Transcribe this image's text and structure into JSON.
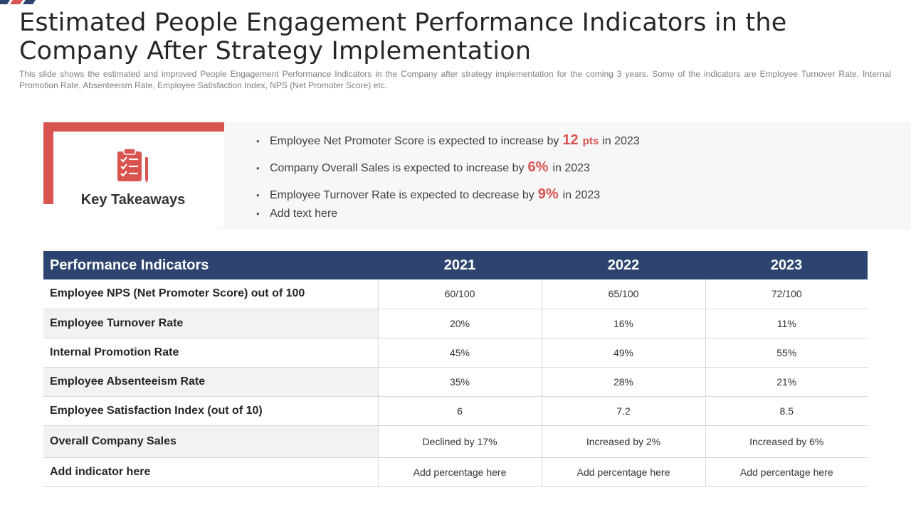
{
  "title": "Estimated People Engagement Performance Indicators in the Company After Strategy Implementation",
  "subtitle": "This slide shows the estimated and improved People Engagement Performance Indicators in the Company after strategy implementation for the coming 3 years. Some of the indicators are Employee Turnover Rate, Internal Promotion Rate, Absenteeism Rate, Employee Satisfaction Index, NPS (Net Promoter Score) etc.",
  "colors": {
    "accent": "#d9534f",
    "header_bg": "#2e4470",
    "panel_bg": "#f7f7f7"
  },
  "key_takeaways": {
    "label": "Key Takeaways",
    "icon": "clipboard-checklist-icon",
    "bullets": [
      {
        "before": "Employee Net Promoter Score is expected to increase by",
        "highlight": "12",
        "unit": "pts",
        "after": "in 2023"
      },
      {
        "before": "Company Overall Sales is expected to increase by",
        "highlight": "6%",
        "after": "in 2023"
      },
      {
        "before": "Employee Turnover  Rate is expected to decrease by",
        "highlight": "9%",
        "after": "in 2023"
      },
      {
        "text": "Add text here"
      }
    ]
  },
  "table": {
    "headers": [
      "Performance Indicators",
      "2021",
      "2022",
      "2023"
    ],
    "rows": [
      {
        "label": "Employee NPS (Net Promoter Score) out of 100",
        "values": [
          "60/100",
          "65/100",
          "72/100"
        ]
      },
      {
        "label": "Employee Turnover Rate",
        "values": [
          "20%",
          "16%",
          "11%"
        ]
      },
      {
        "label": "Internal Promotion Rate",
        "values": [
          "45%",
          "49%",
          "55%"
        ]
      },
      {
        "label": "Employee Absenteeism Rate",
        "values": [
          "35%",
          "28%",
          "21%"
        ]
      },
      {
        "label": "Employee Satisfaction Index (out of 10)",
        "values": [
          "6",
          "7.2",
          "8.5"
        ]
      },
      {
        "label": "Overall Company Sales",
        "values": [
          "Declined by 17%",
          "Increased by 2%",
          "Increased by 6%"
        ]
      },
      {
        "label": "Add indicator here",
        "values": [
          "Add percentage here",
          "Add percentage here",
          "Add percentage here"
        ]
      }
    ]
  }
}
